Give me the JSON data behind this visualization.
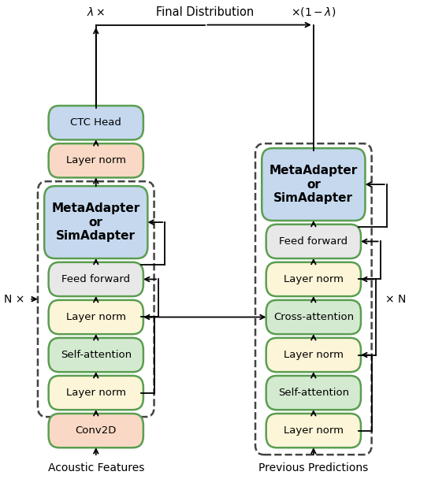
{
  "figsize": [
    5.66,
    6.08
  ],
  "dpi": 100,
  "colors": {
    "green_border": "#5a9e50",
    "light_green_fill": "#d4ead0",
    "light_blue_fill": "#c5d8ee",
    "light_orange_fill": "#f9d9c5",
    "light_yellow_fill": "#fdf5d8",
    "feed_forward_fill": "#e8e8e8",
    "dashed_box": "#444444"
  },
  "title": "Final Distribution",
  "lambda_left": "$\\lambda \\times$",
  "lambda_right": "$\\times (1-\\lambda)$",
  "N_left": "N $\\times$",
  "N_right": "$\\times$ N",
  "label_left": "Acoustic Features",
  "label_right": "Previous Predictions"
}
